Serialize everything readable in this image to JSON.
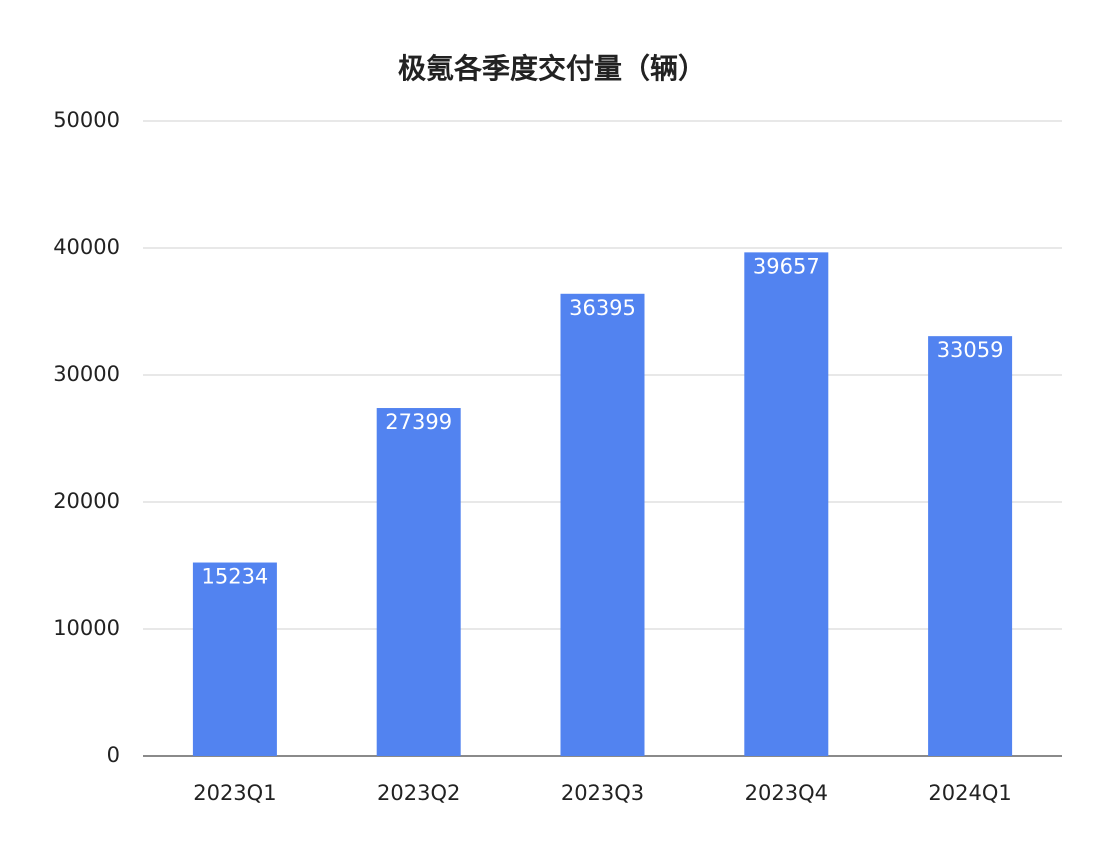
{
  "chart_data": {
    "type": "bar",
    "title": "极氪各季度交付量（辆）",
    "categories": [
      "2023Q1",
      "2023Q2",
      "2023Q3",
      "2023Q4",
      "2024Q1"
    ],
    "values": [
      15234,
      27399,
      36395,
      39657,
      33059
    ],
    "color": "#5283f0",
    "ylim": [
      0,
      50000
    ],
    "yticks": [
      0,
      10000,
      20000,
      30000,
      40000,
      50000
    ],
    "grid": true
  }
}
